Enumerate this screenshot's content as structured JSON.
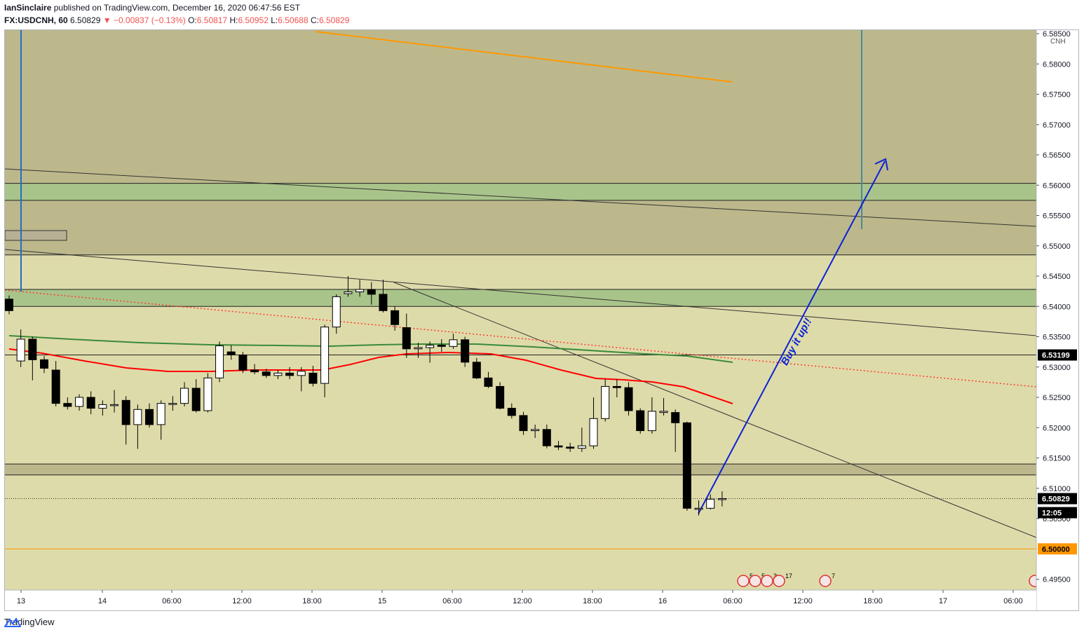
{
  "header": {
    "author": "IanSinclaire",
    "published_text": "published on TradingView.com, December 16, 2020 06:47:56 EST",
    "symbol": "FX:USDCNH, 60",
    "last": "6.50829",
    "change": "−0.00837 (−0.13%)",
    "o_label": "O:",
    "o": "6.50817",
    "h_label": "H:",
    "h": "6.50952",
    "l_label": "L:",
    "l": "6.50688",
    "c_label": "C:",
    "c": "6.50829"
  },
  "price_scale": {
    "currency": "CNH",
    "ticks": [
      "6.58500",
      "6.58000",
      "6.57500",
      "6.57000",
      "6.56500",
      "6.56000",
      "6.55500",
      "6.55000",
      "6.54500",
      "6.54000",
      "6.53500",
      "6.53000",
      "6.52500",
      "6.52000",
      "6.51500",
      "6.51000",
      "6.50500",
      "6.49500"
    ],
    "badge_ema": "6.53199",
    "badge_last": "6.50829",
    "badge_timer": "12:05",
    "badge_level": "6.50000"
  },
  "time_scale": {
    "labels": [
      "13",
      "14",
      "06:00",
      "12:00",
      "18:00",
      "15",
      "06:00",
      "12:00",
      "18:00",
      "16",
      "06:00",
      "12:00",
      "18:00",
      "17",
      "06:00"
    ]
  },
  "annotation": {
    "text": "Buy it up!!"
  },
  "events": [
    {
      "count": "5"
    },
    {
      "count": "5"
    },
    {
      "count": "3"
    },
    {
      "count": "17"
    },
    {
      "count": "7"
    }
  ],
  "footer": {
    "brand": "TradingView"
  },
  "colors": {
    "background": "#dedbaa",
    "upper_zone": "#bcb88c",
    "green_zone": "#a9c48a",
    "candle_up": "#ffffff",
    "candle_down": "#000000",
    "ema_red": "#ff0000",
    "sma_green": "#3a8a3a",
    "trend_orange": "#ff9800",
    "arrow_blue": "#0b22d6",
    "vertical_blue": "#1f6fc4"
  },
  "chart_data": {
    "type": "candlestick",
    "symbol": "FX:USDCNH",
    "interval": "60",
    "ylim": [
      6.4925,
      6.586
    ],
    "yticks": [
      6.585,
      6.58,
      6.575,
      6.57,
      6.565,
      6.56,
      6.555,
      6.55,
      6.545,
      6.54,
      6.535,
      6.53,
      6.525,
      6.52,
      6.515,
      6.51,
      6.505,
      6.495
    ],
    "x_labels": [
      "13",
      "14",
      "06:00",
      "12:00",
      "18:00",
      "15",
      "06:00",
      "12:00",
      "18:00",
      "16",
      "06:00",
      "12:00",
      "18:00",
      "17",
      "06:00"
    ],
    "candles": [
      [
        6.5412,
        6.5418,
        6.5387,
        6.5393
      ],
      [
        6.531,
        6.5362,
        6.53,
        6.5346
      ],
      [
        6.5346,
        6.535,
        6.5278,
        6.5312
      ],
      [
        6.5312,
        6.5318,
        6.529,
        6.5298
      ],
      [
        6.5295,
        6.531,
        6.5235,
        6.524
      ],
      [
        6.524,
        6.525,
        6.523,
        6.5235
      ],
      [
        6.5235,
        6.5255,
        6.5228,
        6.525
      ],
      [
        6.525,
        6.526,
        6.5222,
        6.5232
      ],
      [
        6.5232,
        6.5245,
        6.522,
        6.5238
      ],
      [
        6.5238,
        6.5262,
        6.5225,
        6.5238
      ],
      [
        6.5245,
        6.5252,
        6.5172,
        6.5205
      ],
      [
        6.5205,
        6.5238,
        6.5165,
        6.523
      ],
      [
        6.523,
        6.524,
        6.52,
        6.5205
      ],
      [
        6.5205,
        6.5245,
        6.518,
        6.524
      ],
      [
        6.524,
        6.5252,
        6.5228,
        6.524
      ],
      [
        6.524,
        6.5275,
        6.5235,
        6.5265
      ],
      [
        6.5265,
        6.528,
        6.5225,
        6.5228
      ],
      [
        6.5228,
        6.529,
        6.5225,
        6.5282
      ],
      [
        6.5282,
        6.5342,
        6.5275,
        6.5335
      ],
      [
        6.5325,
        6.5336,
        6.5312,
        6.532
      ],
      [
        6.532,
        6.5325,
        6.529,
        6.5295
      ],
      [
        6.5295,
        6.5305,
        6.5288,
        6.5292
      ],
      [
        6.5292,
        6.5297,
        6.5282,
        6.5286
      ],
      [
        6.5286,
        6.5295,
        6.528,
        6.529
      ],
      [
        6.529,
        6.53,
        6.528,
        6.5286
      ],
      [
        6.5286,
        6.53,
        6.526,
        6.5293
      ],
      [
        6.529,
        6.5302,
        6.5268,
        6.5273
      ],
      [
        6.5273,
        6.537,
        6.525,
        6.5366
      ],
      [
        6.5366,
        6.542,
        6.5355,
        6.5416
      ],
      [
        6.5421,
        6.545,
        6.5416,
        6.5424
      ],
      [
        6.5424,
        6.5444,
        6.5416,
        6.5428
      ],
      [
        6.5428,
        6.544,
        6.5403,
        6.542
      ],
      [
        6.542,
        6.5444,
        6.539,
        6.5393
      ],
      [
        6.5393,
        6.54,
        6.536,
        6.537
      ],
      [
        6.5365,
        6.5388,
        6.5315,
        6.533
      ],
      [
        6.533,
        6.534,
        6.5315,
        6.5332
      ],
      [
        6.5332,
        6.5342,
        6.5307,
        6.5336
      ],
      [
        6.5336,
        6.5346,
        6.5325,
        6.5334
      ],
      [
        6.5334,
        6.5355,
        6.533,
        6.5345
      ],
      [
        6.5345,
        6.535,
        6.53,
        6.5308
      ],
      [
        6.5308,
        6.5315,
        6.528,
        6.5282
      ],
      [
        6.5282,
        6.5292,
        6.5265,
        6.5268
      ],
      [
        6.5268,
        6.5275,
        6.523,
        6.5232
      ],
      [
        6.5232,
        6.524,
        6.5215,
        6.522
      ],
      [
        6.522,
        6.5226,
        6.5188,
        6.5195
      ],
      [
        6.5195,
        6.5205,
        6.5183,
        6.5197
      ],
      [
        6.5197,
        6.5205,
        6.5166,
        6.517
      ],
      [
        6.517,
        6.5178,
        6.5163,
        6.5168
      ],
      [
        6.5168,
        6.5175,
        6.516,
        6.5166
      ],
      [
        6.5166,
        6.52,
        6.516,
        6.517
      ],
      [
        6.517,
        6.525,
        6.5165,
        6.5215
      ],
      [
        6.5215,
        6.528,
        6.521,
        6.5268
      ],
      [
        6.5268,
        6.528,
        6.525,
        6.5266
      ],
      [
        6.5266,
        6.5275,
        6.522,
        6.5228
      ],
      [
        6.5228,
        6.5232,
        6.519,
        6.5195
      ],
      [
        6.5195,
        6.525,
        6.519,
        6.5227
      ],
      [
        6.5225,
        6.5249,
        6.522,
        6.5227
      ],
      [
        6.5225,
        6.523,
        6.516,
        6.5208
      ],
      [
        6.5208,
        6.521,
        6.5063,
        6.5067
      ],
      [
        6.5067,
        6.508,
        6.5055,
        6.5067
      ],
      [
        6.5067,
        6.509,
        6.5065,
        6.5082
      ],
      [
        6.5082,
        6.5095,
        6.507,
        6.5083
      ]
    ],
    "indicators": [
      {
        "kind": "ema",
        "color": "#ff0000"
      },
      {
        "kind": "sma",
        "color": "#3a8a3a"
      }
    ],
    "zones": [
      {
        "from": 6.5485,
        "to": 6.586,
        "color": "#bcb88c"
      },
      {
        "from": 6.5575,
        "to": 6.5603,
        "color": "#a9c48a"
      },
      {
        "from": 6.54,
        "to": 6.5428,
        "color": "#a9c48a"
      },
      {
        "from": 6.5122,
        "to": 6.514,
        "color": "#bcb88c"
      }
    ],
    "horizontal_levels": [
      6.532,
      6.5
    ],
    "last_price": 6.50829
  }
}
